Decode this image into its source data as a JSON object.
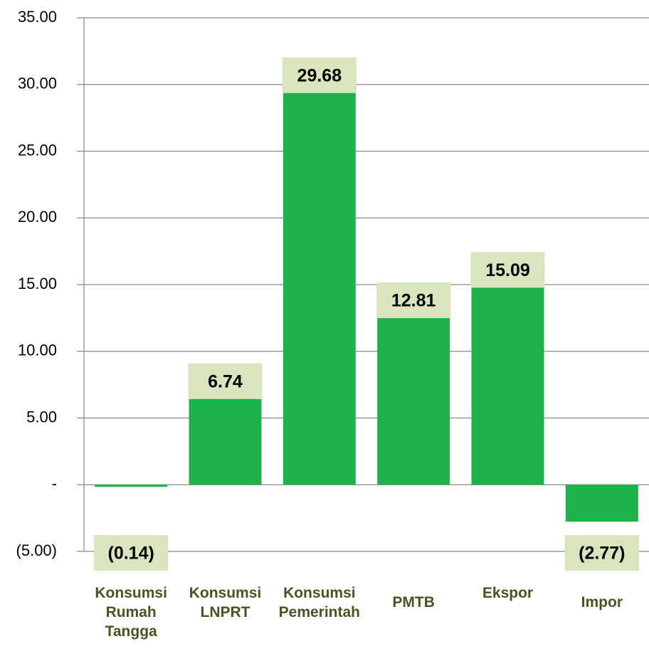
{
  "chart_data": {
    "type": "bar",
    "categories": [
      "Konsumsi Rumah Tangga",
      "Konsumsi LNPRT",
      "Konsumsi Pemerintah",
      "PMTB",
      "Ekspor",
      "Impor"
    ],
    "values": [
      -0.14,
      6.74,
      29.68,
      12.81,
      15.09,
      -2.77
    ],
    "value_labels": [
      "(0.14)",
      "6.74",
      "29.68",
      "12.81",
      "15.09",
      "(2.77)"
    ],
    "color": "#1fb14c",
    "ylim": [
      -5,
      35
    ],
    "yticks": [
      {
        "value": -5,
        "label": "(5.00)"
      },
      {
        "value": 0,
        "label": "-"
      },
      {
        "value": 5,
        "label": "5.00"
      },
      {
        "value": 10,
        "label": "10.00"
      },
      {
        "value": 15,
        "label": "15.00"
      },
      {
        "value": 20,
        "label": "20.00"
      },
      {
        "value": 25,
        "label": "25.00"
      },
      {
        "value": 30,
        "label": "30.00"
      },
      {
        "value": 35,
        "label": "35.00"
      }
    ],
    "grid": true
  }
}
